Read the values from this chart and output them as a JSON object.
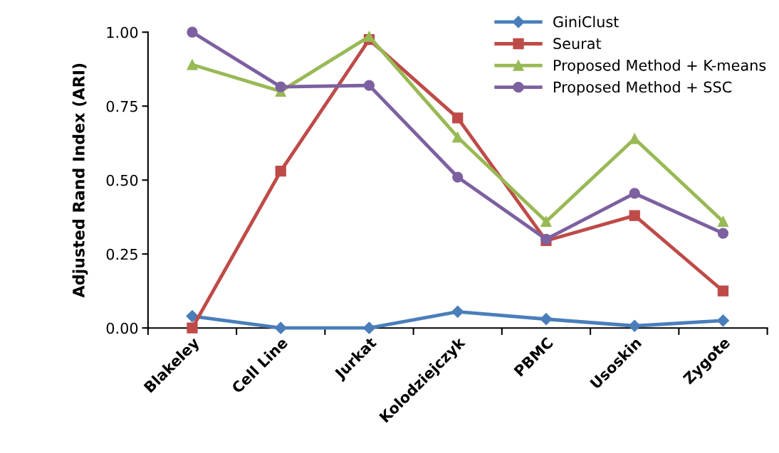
{
  "chart_data": {
    "type": "line",
    "ylabel": "Adjusted Rand Index (ARI)",
    "categories": [
      "Blakeley",
      "Cell Line",
      "Jurkat",
      "Kolodziejczyk",
      "PBMC",
      "Usoskin",
      "Zygote"
    ],
    "series": [
      {
        "name": "GiniClust",
        "color": "#4a7ebb",
        "marker": "diamond",
        "values": [
          0.04,
          0.0,
          0.0,
          0.055,
          0.03,
          0.007,
          0.025
        ]
      },
      {
        "name": "Seurat",
        "color": "#be4b48",
        "marker": "square",
        "values": [
          0.0,
          0.53,
          0.975,
          0.71,
          0.295,
          0.38,
          0.125
        ]
      },
      {
        "name": "Proposed Method + K-means",
        "color": "#98b954",
        "marker": "triangle",
        "values": [
          0.89,
          0.8,
          0.985,
          0.645,
          0.36,
          0.64,
          0.36
        ]
      },
      {
        "name": "Proposed Method + SSC",
        "color": "#7d60a0",
        "marker": "circle",
        "values": [
          1.0,
          0.815,
          0.82,
          0.51,
          0.3,
          0.455,
          0.32
        ]
      }
    ],
    "ylim": [
      0,
      1
    ],
    "yticks": [
      {
        "value": 0,
        "label": "0.00"
      },
      {
        "value": 0.25,
        "label": "0.25"
      },
      {
        "value": 0.5,
        "label": "0.50"
      },
      {
        "value": 0.75,
        "label": "0.75"
      },
      {
        "value": 1,
        "label": "1.00"
      }
    ],
    "grid": false,
    "legend": "top right",
    "line_style": "solid"
  }
}
